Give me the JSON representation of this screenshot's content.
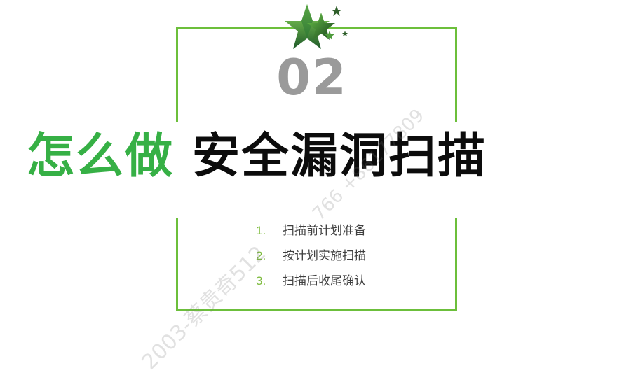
{
  "section_number": "02",
  "title": {
    "green_part": "怎么做",
    "black_part": "安全漏洞扫描"
  },
  "items": [
    {
      "num": "1.",
      "text": "扫描前计划准备"
    },
    {
      "num": "2.",
      "text": "按计划实施扫描"
    },
    {
      "num": "3.",
      "text": "扫描后收尾确认"
    }
  ],
  "watermark_lines": [
    "2003-蔡贵奇512",
    "766 +86177809"
  ],
  "colors": {
    "frame": "#6cbf3b",
    "title_green": "#36b045",
    "title_black": "#0c0c0c",
    "number_gray": "#9a9a9a",
    "list_number_green": "#7dbb3d"
  },
  "icons": {
    "top": "star-cluster-icon"
  }
}
